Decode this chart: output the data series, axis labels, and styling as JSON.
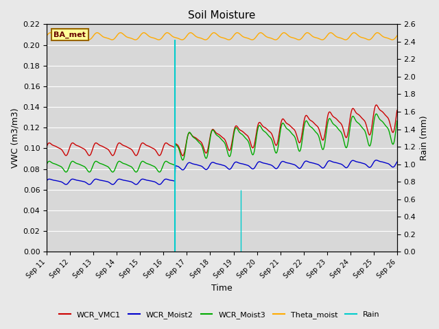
{
  "title": "Soil Moisture",
  "ylabel_left": "VWC (m3/m3)",
  "ylabel_right": "Rain (mm)",
  "xlabel": "Time",
  "station_label": "BA_met",
  "x_tick_labels": [
    "Sep 11",
    "Sep 12",
    "Sep 13",
    "Sep 14",
    "Sep 15",
    "Sep 16",
    "Sep 17",
    "Sep 18",
    "Sep 19",
    "Sep 20",
    "Sep 21",
    "Sep 22",
    "Sep 23",
    "Sep 24",
    "Sep 25",
    "Sep 26"
  ],
  "ylim_left": [
    0.0,
    0.22
  ],
  "ylim_right": [
    0.0,
    2.6
  ],
  "background_color": "#e8e8e8",
  "plot_bg_color": "#d8d8d8",
  "colors": {
    "WCR_VMC1": "#cc0000",
    "WCR_Moist2": "#0000cc",
    "WCR_Moist3": "#00aa00",
    "Theta_moist": "#ffaa00",
    "Rain": "#00cccc"
  },
  "figsize": [
    6.4,
    4.8
  ],
  "dpi": 100
}
